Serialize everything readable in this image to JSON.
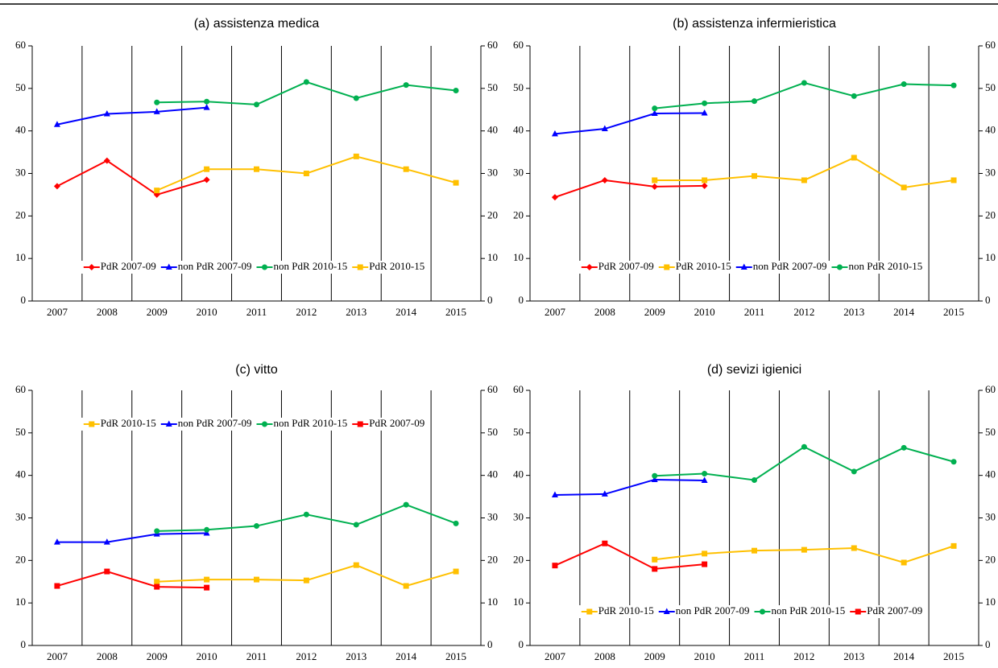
{
  "chart_data": [
    {
      "type": "line",
      "title": "(a) assistenza medica",
      "categories": [
        "2007",
        "2008",
        "2009",
        "2010",
        "2011",
        "2012",
        "2013",
        "2014",
        "2015"
      ],
      "series": [
        {
          "name": "PdR 2007-09",
          "color": "#ff0000",
          "marker": "diamond",
          "values": [
            27,
            33,
            25,
            28.5,
            null,
            null,
            null,
            null,
            null
          ]
        },
        {
          "name": "non PdR 2007-09",
          "color": "#0000ff",
          "marker": "triangle",
          "values": [
            41.5,
            44,
            44.5,
            45.5,
            null,
            null,
            null,
            null,
            null
          ]
        },
        {
          "name": "non PdR 2010-15",
          "color": "#00b050",
          "marker": "circle",
          "values": [
            null,
            null,
            46.7,
            46.9,
            46.2,
            51.5,
            47.7,
            50.8,
            49.5
          ]
        },
        {
          "name": "PdR 2010-15",
          "color": "#ffc000",
          "marker": "square",
          "values": [
            null,
            null,
            26,
            31,
            31,
            30,
            34,
            31,
            27.8
          ]
        }
      ],
      "ylim": [
        0,
        60
      ],
      "yticks": [
        0,
        10,
        20,
        30,
        40,
        50,
        60
      ],
      "y2lim": [
        0,
        60
      ],
      "y2ticks": [
        0,
        10,
        20,
        30,
        40,
        50,
        60
      ],
      "grid": "x",
      "legend": "lower center"
    },
    {
      "type": "line",
      "title": "(b) assistenza infermieristica",
      "categories": [
        "2007",
        "2008",
        "2009",
        "2010",
        "2011",
        "2012",
        "2013",
        "2014",
        "2015"
      ],
      "series": [
        {
          "name": "PdR 2007-09",
          "color": "#ff0000",
          "marker": "diamond",
          "values": [
            24.4,
            28.4,
            26.9,
            27.1,
            null,
            null,
            null,
            null,
            null
          ]
        },
        {
          "name": "PdR 2010-15",
          "color": "#ffc000",
          "marker": "square",
          "values": [
            null,
            null,
            28.4,
            28.4,
            29.4,
            28.4,
            33.7,
            26.7,
            28.4
          ]
        },
        {
          "name": "non PdR 2007-09",
          "color": "#0000ff",
          "marker": "triangle",
          "values": [
            39.3,
            40.5,
            44.1,
            44.2,
            null,
            null,
            null,
            null,
            null
          ]
        },
        {
          "name": "non PdR 2010-15",
          "color": "#00b050",
          "marker": "circle",
          "values": [
            null,
            null,
            45.3,
            46.5,
            47,
            51.3,
            48.2,
            51,
            50.7
          ]
        }
      ],
      "ylim": [
        0,
        60
      ],
      "yticks": [
        0,
        10,
        20,
        30,
        40,
        50,
        60
      ],
      "y2lim": [
        0,
        60
      ],
      "y2ticks": [
        0,
        10,
        20,
        30,
        40,
        50,
        60
      ],
      "grid": "x",
      "legend": "lower center"
    },
    {
      "type": "line",
      "title": "(c) vitto",
      "categories": [
        "2007",
        "2008",
        "2009",
        "2010",
        "2011",
        "2012",
        "2013",
        "2014",
        "2015"
      ],
      "series": [
        {
          "name": "PdR 2010-15",
          "color": "#ffc000",
          "marker": "square",
          "values": [
            null,
            null,
            15,
            15.5,
            15.5,
            15.3,
            18.9,
            14,
            17.4
          ]
        },
        {
          "name": "non PdR 2007-09",
          "color": "#0000ff",
          "marker": "triangle",
          "values": [
            24.3,
            24.3,
            26.2,
            26.4,
            null,
            null,
            null,
            null,
            null
          ]
        },
        {
          "name": "non PdR 2010-15",
          "color": "#00b050",
          "marker": "circle",
          "values": [
            null,
            null,
            26.9,
            27.2,
            28.1,
            30.8,
            28.4,
            33.1,
            28.7
          ]
        },
        {
          "name": "PdR 2007-09",
          "color": "#ff0000",
          "marker": "square",
          "values": [
            14,
            17.4,
            13.8,
            13.6,
            null,
            null,
            null,
            null,
            null
          ]
        }
      ],
      "ylim": [
        0,
        60
      ],
      "yticks": [
        0,
        10,
        20,
        30,
        40,
        50,
        60
      ],
      "y2lim": [
        0,
        60
      ],
      "y2ticks": [
        0,
        10,
        20,
        30,
        40,
        50,
        60
      ],
      "grid": "x",
      "legend": "upper center"
    },
    {
      "type": "line",
      "title": "(d) sevizi igienici",
      "categories": [
        "2007",
        "2008",
        "2009",
        "2010",
        "2011",
        "2012",
        "2013",
        "2014",
        "2015"
      ],
      "series": [
        {
          "name": "PdR 2010-15",
          "color": "#ffc000",
          "marker": "square",
          "values": [
            null,
            null,
            20.2,
            21.6,
            22.3,
            22.5,
            22.9,
            19.5,
            23.4
          ]
        },
        {
          "name": "non PdR 2007-09",
          "color": "#0000ff",
          "marker": "triangle",
          "values": [
            35.4,
            35.6,
            39,
            38.8,
            null,
            null,
            null,
            null,
            null
          ]
        },
        {
          "name": "non PdR 2010-15",
          "color": "#00b050",
          "marker": "circle",
          "values": [
            null,
            null,
            39.9,
            40.4,
            38.9,
            46.7,
            40.9,
            46.5,
            43.2
          ]
        },
        {
          "name": "PdR 2007-09",
          "color": "#ff0000",
          "marker": "square",
          "values": [
            18.8,
            24,
            18,
            19.1,
            null,
            null,
            null,
            null,
            null
          ]
        }
      ],
      "ylim": [
        0,
        60
      ],
      "yticks": [
        0,
        10,
        20,
        30,
        40,
        50,
        60
      ],
      "y2lim": [
        0,
        60
      ],
      "y2ticks": [
        0,
        10,
        20,
        30,
        40,
        50,
        60
      ],
      "grid": "x",
      "legend": "lower center"
    }
  ]
}
